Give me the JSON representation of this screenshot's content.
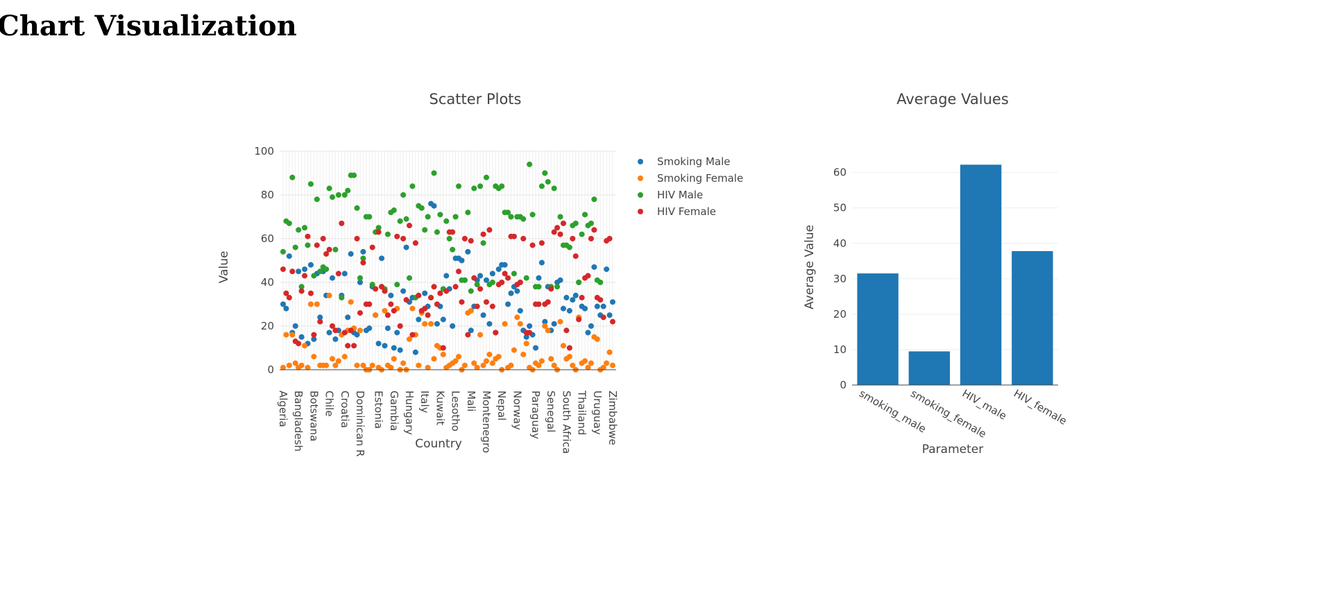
{
  "page": {
    "title": "Chart Visualization"
  },
  "chart_data": [
    {
      "type": "scatter",
      "title": "Scatter Plots",
      "xlabel": "Country",
      "ylabel": "Value",
      "ylim": [
        0,
        100
      ],
      "yticks": [
        0,
        20,
        40,
        60,
        80,
        100
      ],
      "grid": true,
      "legend_position": "top-right",
      "tick_labels": [
        "Algeria",
        "Bangladesh",
        "Botswana",
        "Chile",
        "Croatia",
        "Dominican R",
        "Estonia",
        "Gambia",
        "Hungary",
        "Italy",
        "Kuwait",
        "Lesotho",
        "Mali",
        "Montenegro",
        "Nepal",
        "Norway",
        "Paraguay",
        "Senegal",
        "South Africa",
        "Thailand",
        "Uruguay",
        "Zimbabwe"
      ],
      "series": [
        {
          "name": "Smoking Male",
          "color": "#1f77b4",
          "values": [
            30,
            28,
            52,
            17,
            20,
            45,
            15,
            46,
            12,
            48,
            14,
            44,
            24,
            45,
            34,
            17,
            42,
            14,
            18,
            34,
            44,
            24,
            53,
            17,
            16,
            40,
            54,
            18,
            19,
            38,
            25,
            12,
            51,
            11,
            19,
            34,
            10,
            17,
            9,
            36,
            56,
            31,
            33,
            8,
            23,
            27,
            35,
            29,
            76,
            75,
            21,
            29,
            23,
            43,
            37,
            20,
            51,
            51,
            50,
            41,
            54,
            18,
            29,
            41,
            43,
            25,
            41,
            21,
            44,
            17,
            46,
            48,
            48,
            30,
            35,
            38,
            36,
            27,
            18,
            15,
            20,
            16,
            10,
            42,
            49,
            22,
            38,
            18,
            21,
            40,
            41,
            28,
            33,
            27,
            32,
            34,
            40,
            29,
            28,
            17,
            20,
            47,
            29,
            25,
            29,
            46,
            25,
            31
          ]
        },
        {
          "name": "Smoking Female",
          "color": "#ff7f0e",
          "values": [
            1,
            16,
            2,
            16,
            3,
            1,
            2,
            11,
            1,
            30,
            6,
            30,
            2,
            2,
            2,
            34,
            5,
            2,
            4,
            16,
            6,
            18,
            31,
            19,
            2,
            18,
            2,
            0,
            0,
            2,
            25,
            1,
            0,
            27,
            2,
            1,
            5,
            28,
            0,
            3,
            0,
            14,
            28,
            16,
            2,
            26,
            21,
            1,
            21,
            5,
            11,
            10,
            7,
            1,
            2,
            3,
            4,
            6,
            0,
            2,
            26,
            27,
            3,
            1,
            16,
            2,
            4,
            7,
            3,
            5,
            6,
            0,
            21,
            1,
            2,
            9,
            24,
            21,
            7,
            12,
            1,
            0,
            3,
            2,
            4,
            20,
            18,
            5,
            2,
            0,
            22,
            11,
            5,
            6,
            2,
            0,
            24,
            3,
            4,
            1,
            3,
            15,
            14,
            0,
            1,
            3,
            8,
            2
          ]
        },
        {
          "name": "HIV Male",
          "color": "#2ca02c",
          "values": [
            54,
            68,
            67,
            88,
            56,
            64,
            38,
            65,
            57,
            85,
            43,
            78,
            45,
            47,
            46,
            83,
            79,
            55,
            80,
            33,
            80,
            82,
            89,
            89,
            74,
            42,
            51,
            70,
            70,
            39,
            63,
            65,
            38,
            37,
            62,
            72,
            73,
            39,
            68,
            80,
            69,
            42,
            84,
            33,
            75,
            74,
            64,
            70,
            33,
            90,
            63,
            71,
            37,
            68,
            60,
            55,
            70,
            84,
            41,
            41,
            72,
            36,
            83,
            39,
            84,
            58,
            88,
            39,
            40,
            84,
            83,
            84,
            72,
            72,
            70,
            44,
            70,
            70,
            69,
            42,
            94,
            71,
            38,
            38,
            84,
            90,
            86,
            38,
            83,
            38,
            70,
            57,
            57,
            56,
            66,
            67,
            40,
            62,
            71,
            66,
            67,
            78,
            41,
            40
          ]
        },
        {
          "name": "HIV Female",
          "color": "#d62728",
          "values": [
            46,
            35,
            33,
            45,
            13,
            12,
            36,
            43,
            61,
            35,
            16,
            57,
            22,
            60,
            53,
            55,
            20,
            18,
            44,
            67,
            17,
            11,
            18,
            11,
            60,
            26,
            49,
            30,
            30,
            56,
            37,
            63,
            38,
            36,
            25,
            30,
            27,
            61,
            20,
            60,
            32,
            66,
            16,
            58,
            34,
            27,
            28,
            25,
            33,
            38,
            30,
            35,
            10,
            36,
            63,
            63,
            38,
            45,
            31,
            60,
            16,
            59,
            42,
            29,
            37,
            62,
            31,
            64,
            29,
            17,
            39,
            40,
            44,
            42,
            61,
            61,
            39,
            40,
            60,
            17,
            17,
            57,
            30,
            30,
            58,
            30,
            31,
            37,
            63,
            65,
            62,
            67,
            18,
            10,
            60,
            52,
            23,
            33,
            42,
            43,
            60,
            64,
            33,
            32,
            24,
            59,
            60,
            22
          ]
        }
      ]
    },
    {
      "type": "bar",
      "title": "Average Values",
      "xlabel": "Parameter",
      "ylabel": "Average Value",
      "ylim": [
        0,
        66
      ],
      "yticks": [
        0,
        10,
        20,
        30,
        40,
        50,
        60
      ],
      "grid": true,
      "color": "#1f77b4",
      "categories": [
        "smoking_male",
        "smoking_female",
        "HIV_male",
        "HIV_female"
      ],
      "values": [
        31.5,
        9.5,
        62.2,
        37.8
      ]
    }
  ]
}
